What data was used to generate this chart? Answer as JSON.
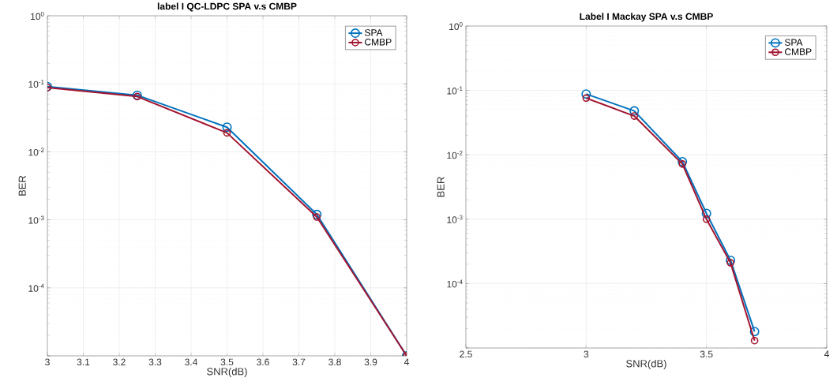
{
  "chart_data": [
    {
      "type": "line",
      "title": "label I QC-LDPC SPA v.s CMBP",
      "xlabel": "SNR(dB)",
      "ylabel": "BER",
      "log": "y",
      "grid": true,
      "legend": "top right",
      "marker": "circle",
      "line_style": "solid",
      "x": [
        3,
        3.25,
        3.5,
        3.75,
        4
      ],
      "xlim": [
        3,
        4
      ],
      "xticks": [
        3,
        3.1,
        3.2,
        3.3,
        3.4,
        3.5,
        3.6,
        3.7,
        3.8,
        3.9,
        4
      ],
      "ylim": [
        1e-05,
        1
      ],
      "yticks": [
        {
          "value": 1e-05,
          "label": null
        },
        {
          "value": 0.0001,
          "label": "10$^{-4}$"
        },
        {
          "value": 0.001,
          "label": "10$^{-3}$"
        },
        {
          "value": 0.01,
          "label": "10$^{-2}$"
        },
        {
          "value": 0.1,
          "label": "10$^{-1}$"
        },
        {
          "value": 1,
          "label": "10$^{0}$"
        }
      ],
      "series": [
        {
          "name": "SPA",
          "color": "#0072bd",
          "values": [
            0.091,
            0.068,
            0.023,
            0.0012,
            1e-05
          ]
        },
        {
          "name": "CMBP",
          "color": "#a2142f",
          "values": [
            0.088,
            0.065,
            0.019,
            0.0011,
            1e-05
          ]
        }
      ]
    },
    {
      "type": "line",
      "title": "Label I Mackay SPA v.s CMBP",
      "xlabel": "SNR(dB)",
      "ylabel": "BER",
      "log": "y",
      "grid": true,
      "legend": "top right",
      "marker": "circle",
      "line_style": "solid",
      "x": [
        3,
        3.2,
        3.4,
        3.5,
        3.6,
        3.7
      ],
      "xlim": [
        2.5,
        4
      ],
      "xticks": [
        2.5,
        3,
        3.5,
        4
      ],
      "ylim": [
        1e-05,
        1
      ],
      "yticks": [
        {
          "value": 1e-05,
          "label": null
        },
        {
          "value": 0.0001,
          "label": "10$^{-4}$"
        },
        {
          "value": 0.001,
          "label": "10$^{-3}$"
        },
        {
          "value": 0.01,
          "label": "10$^{-2}$"
        },
        {
          "value": 0.1,
          "label": "10$^{-1}$"
        },
        {
          "value": 1,
          "label": "10$^{0}$"
        }
      ],
      "series": [
        {
          "name": "SPA",
          "color": "#0072bd",
          "values": [
            0.088,
            0.048,
            0.0078,
            0.00123,
            0.00023,
            1.8e-05
          ]
        },
        {
          "name": "CMBP",
          "color": "#a2142f",
          "values": [
            0.076,
            0.04,
            0.0072,
            0.001,
            0.00021,
            1.3e-05
          ]
        }
      ]
    }
  ]
}
